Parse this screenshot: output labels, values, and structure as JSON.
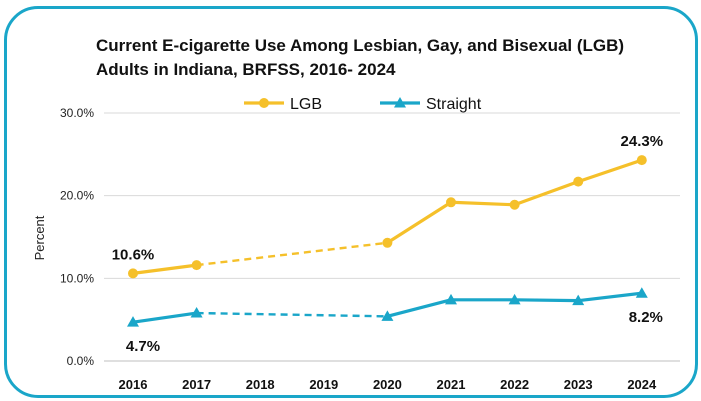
{
  "chart_data": {
    "type": "line",
    "title": "Current E-cigarette Use Among Lesbian, Gay, and Bisexual (LGB) Adults in Indiana, BRFSS, 2016- 2024",
    "ylabel": "Percent",
    "xlabel": "",
    "categories": [
      "2016",
      "2017",
      "2018",
      "2019",
      "2020",
      "2021",
      "2022",
      "2023",
      "2024"
    ],
    "yticks": [
      "0.0%",
      "10.0%",
      "20.0%",
      "30.0%"
    ],
    "ylim": [
      0,
      30
    ],
    "grid": true,
    "legend_position": "top",
    "series": [
      {
        "name": "LGB",
        "color": "#f5c02a",
        "marker": "circle",
        "values": [
          10.6,
          11.6,
          null,
          null,
          14.3,
          19.2,
          18.9,
          21.7,
          24.3
        ],
        "dashed_between": [
          [
            "2017",
            "2020"
          ]
        ]
      },
      {
        "name": "Straight",
        "color": "#1aa6c9",
        "marker": "triangle",
        "values": [
          4.7,
          5.8,
          null,
          null,
          5.4,
          7.4,
          7.4,
          7.3,
          8.2
        ],
        "dashed_between": [
          [
            "2017",
            "2020"
          ]
        ]
      }
    ],
    "annotations": [
      {
        "series": "LGB",
        "category": "2016",
        "text": "10.6%"
      },
      {
        "series": "LGB",
        "category": "2024",
        "text": "24.3%"
      },
      {
        "series": "Straight",
        "category": "2016",
        "text": "4.7%"
      },
      {
        "series": "Straight",
        "category": "2024",
        "text": "8.2%"
      }
    ]
  }
}
